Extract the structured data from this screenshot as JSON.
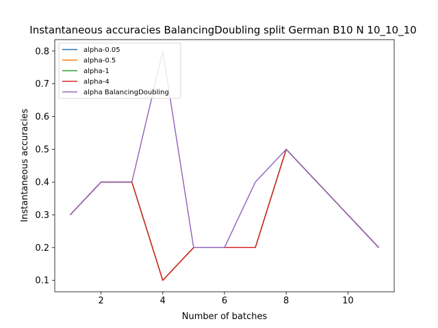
{
  "chart_data": {
    "type": "line",
    "title": "Instantaneous accuracies BalancingDoubling split German B10 N 10_10_10",
    "xlabel": "Number of batches",
    "ylabel": "Instantaneous accuracies",
    "xlim": [
      0.5,
      11.5
    ],
    "ylim": [
      0.065,
      0.835
    ],
    "xticks": [
      2,
      4,
      6,
      8,
      10
    ],
    "yticks": [
      0.1,
      0.2,
      0.3,
      0.4,
      0.5,
      0.6,
      0.7,
      0.8
    ],
    "grid": false,
    "legend_position": "top-left",
    "x": [
      1,
      2,
      3,
      4,
      5,
      6,
      7,
      8,
      11
    ],
    "series": [
      {
        "name": "alpha-0.05",
        "color": "#1f77b4",
        "values": [
          0.3,
          0.4,
          0.4,
          0.1,
          0.2,
          0.2,
          0.2,
          0.5,
          0.2
        ]
      },
      {
        "name": "alpha-0.5",
        "color": "#ff7f0e",
        "values": [
          0.3,
          0.4,
          0.4,
          0.1,
          0.2,
          0.2,
          0.2,
          0.5,
          0.2
        ]
      },
      {
        "name": "alpha-1",
        "color": "#2ca02c",
        "values": [
          0.3,
          0.4,
          0.4,
          0.1,
          0.2,
          0.2,
          0.2,
          0.5,
          0.2
        ]
      },
      {
        "name": "alpha-4",
        "color": "#d62728",
        "values": [
          0.3,
          0.4,
          0.4,
          0.1,
          0.2,
          0.2,
          0.2,
          0.5,
          0.2
        ]
      },
      {
        "name": "alpha BalancingDoubling",
        "color": "#9467bd",
        "values": [
          0.3,
          0.4,
          0.4,
          0.8,
          0.2,
          0.2,
          0.4,
          0.5,
          0.2
        ]
      }
    ]
  }
}
